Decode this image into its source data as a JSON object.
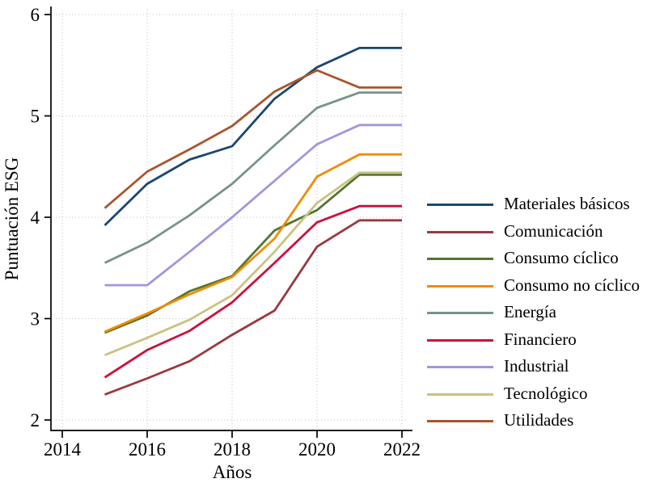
{
  "chart_data": {
    "type": "line",
    "title": "",
    "xlabel": "Años",
    "ylabel": "Puntuación ESG",
    "x": [
      2015,
      2016,
      2017,
      2018,
      2019,
      2020,
      2021,
      2022
    ],
    "xticks": [
      2014,
      2016,
      2018,
      2020,
      2022
    ],
    "yticks": [
      2,
      3,
      4,
      5,
      6
    ],
    "xlim": [
      2014,
      2022.3
    ],
    "ylim": [
      2,
      6
    ],
    "grid": "dotted, both axes",
    "legend_position": "right",
    "axis_color": "#000000",
    "grid_color": "#c2c2c2",
    "background_color": "#ffffff",
    "series": [
      {
        "name": "Materiales básicos",
        "color": "#1a476f",
        "values": [
          3.92,
          4.33,
          4.57,
          4.7,
          5.17,
          5.48,
          5.67,
          5.67
        ]
      },
      {
        "name": "Comunicación",
        "color": "#9a383f",
        "values": [
          2.25,
          2.41,
          2.58,
          2.84,
          3.08,
          3.71,
          3.97,
          3.97
        ]
      },
      {
        "name": "Consumo cíclico",
        "color": "#55752f",
        "values": [
          2.86,
          3.03,
          3.27,
          3.42,
          3.87,
          4.07,
          4.42,
          4.42
        ]
      },
      {
        "name": "Consumo no cíclico",
        "color": "#f08c00",
        "values": [
          2.87,
          3.05,
          3.24,
          3.41,
          3.79,
          4.4,
          4.62,
          4.62
        ]
      },
      {
        "name": "Energía",
        "color": "#76938a",
        "values": [
          3.55,
          3.75,
          4.02,
          4.33,
          4.71,
          5.08,
          5.23,
          5.23
        ]
      },
      {
        "name": "Financiero",
        "color": "#cc0f3c",
        "values": [
          2.42,
          2.69,
          2.88,
          3.16,
          3.55,
          3.95,
          4.11,
          4.11
        ]
      },
      {
        "name": "Industrial",
        "color": "#9e98dd",
        "values": [
          3.33,
          3.33,
          3.66,
          4.0,
          4.36,
          4.72,
          4.91,
          4.91
        ]
      },
      {
        "name": "Tecnológico",
        "color": "#cbc284",
        "values": [
          2.64,
          2.81,
          2.99,
          3.23,
          3.66,
          4.14,
          4.44,
          4.44
        ]
      },
      {
        "name": "Utilidades",
        "color": "#a8552c",
        "values": [
          4.09,
          4.45,
          4.67,
          4.9,
          5.24,
          5.45,
          5.28,
          5.28
        ]
      }
    ]
  }
}
